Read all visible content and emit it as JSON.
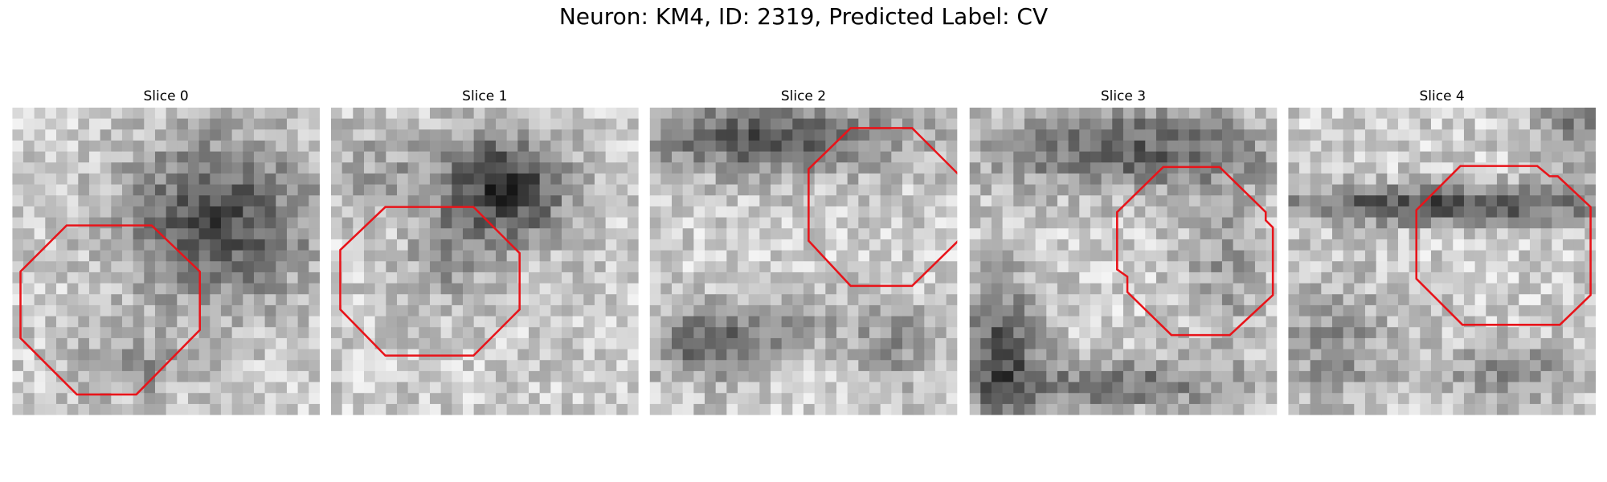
{
  "title": "Neuron: KM4, ID: 2319, Predicted Label: CV",
  "panels": [
    {
      "label": "Slice 0"
    },
    {
      "label": "Slice 1"
    },
    {
      "label": "Slice 2"
    },
    {
      "label": "Slice 3"
    },
    {
      "label": "Slice 4"
    }
  ]
}
